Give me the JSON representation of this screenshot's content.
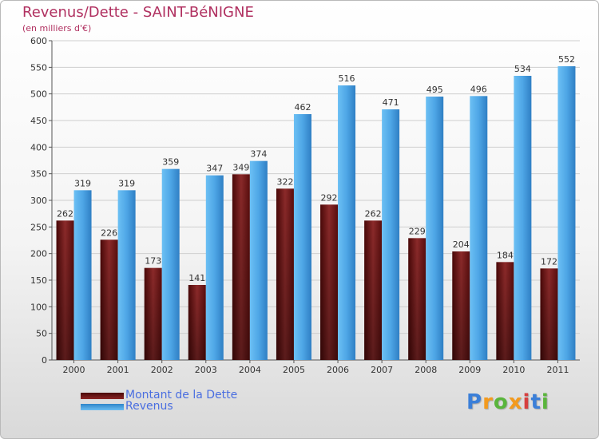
{
  "chart_data": {
    "type": "bar",
    "title": "Revenus/Dette - SAINT-BéNIGNE",
    "subtitle": "(en milliers d'€)",
    "categories": [
      "2000",
      "2001",
      "2002",
      "2003",
      "2004",
      "2005",
      "2006",
      "2007",
      "2008",
      "2009",
      "2010",
      "2011"
    ],
    "series": [
      {
        "name": "Montant de la Dette",
        "values": [
          262,
          226,
          173,
          141,
          349,
          322,
          292,
          262,
          229,
          204,
          184,
          172
        ],
        "color": "#6e1414"
      },
      {
        "name": "Revenus",
        "values": [
          319,
          319,
          359,
          347,
          374,
          462,
          516,
          471,
          495,
          496,
          534,
          552
        ],
        "color": "#4ea6e6"
      }
    ],
    "ylim": [
      0,
      600
    ],
    "yticks": [
      0,
      50,
      100,
      150,
      200,
      250,
      300,
      350,
      400,
      450,
      500,
      550,
      600
    ],
    "grid": true,
    "legend": "bottom-left"
  },
  "brand": {
    "letters": [
      "P",
      "r",
      "o",
      "x",
      "i",
      "t",
      "i"
    ],
    "colors": [
      "#3b7fd8",
      "#f39a1e",
      "#5ab53c",
      "#f39a1e",
      "#d63f3f",
      "#3b7fd8",
      "#5ab53c"
    ]
  }
}
